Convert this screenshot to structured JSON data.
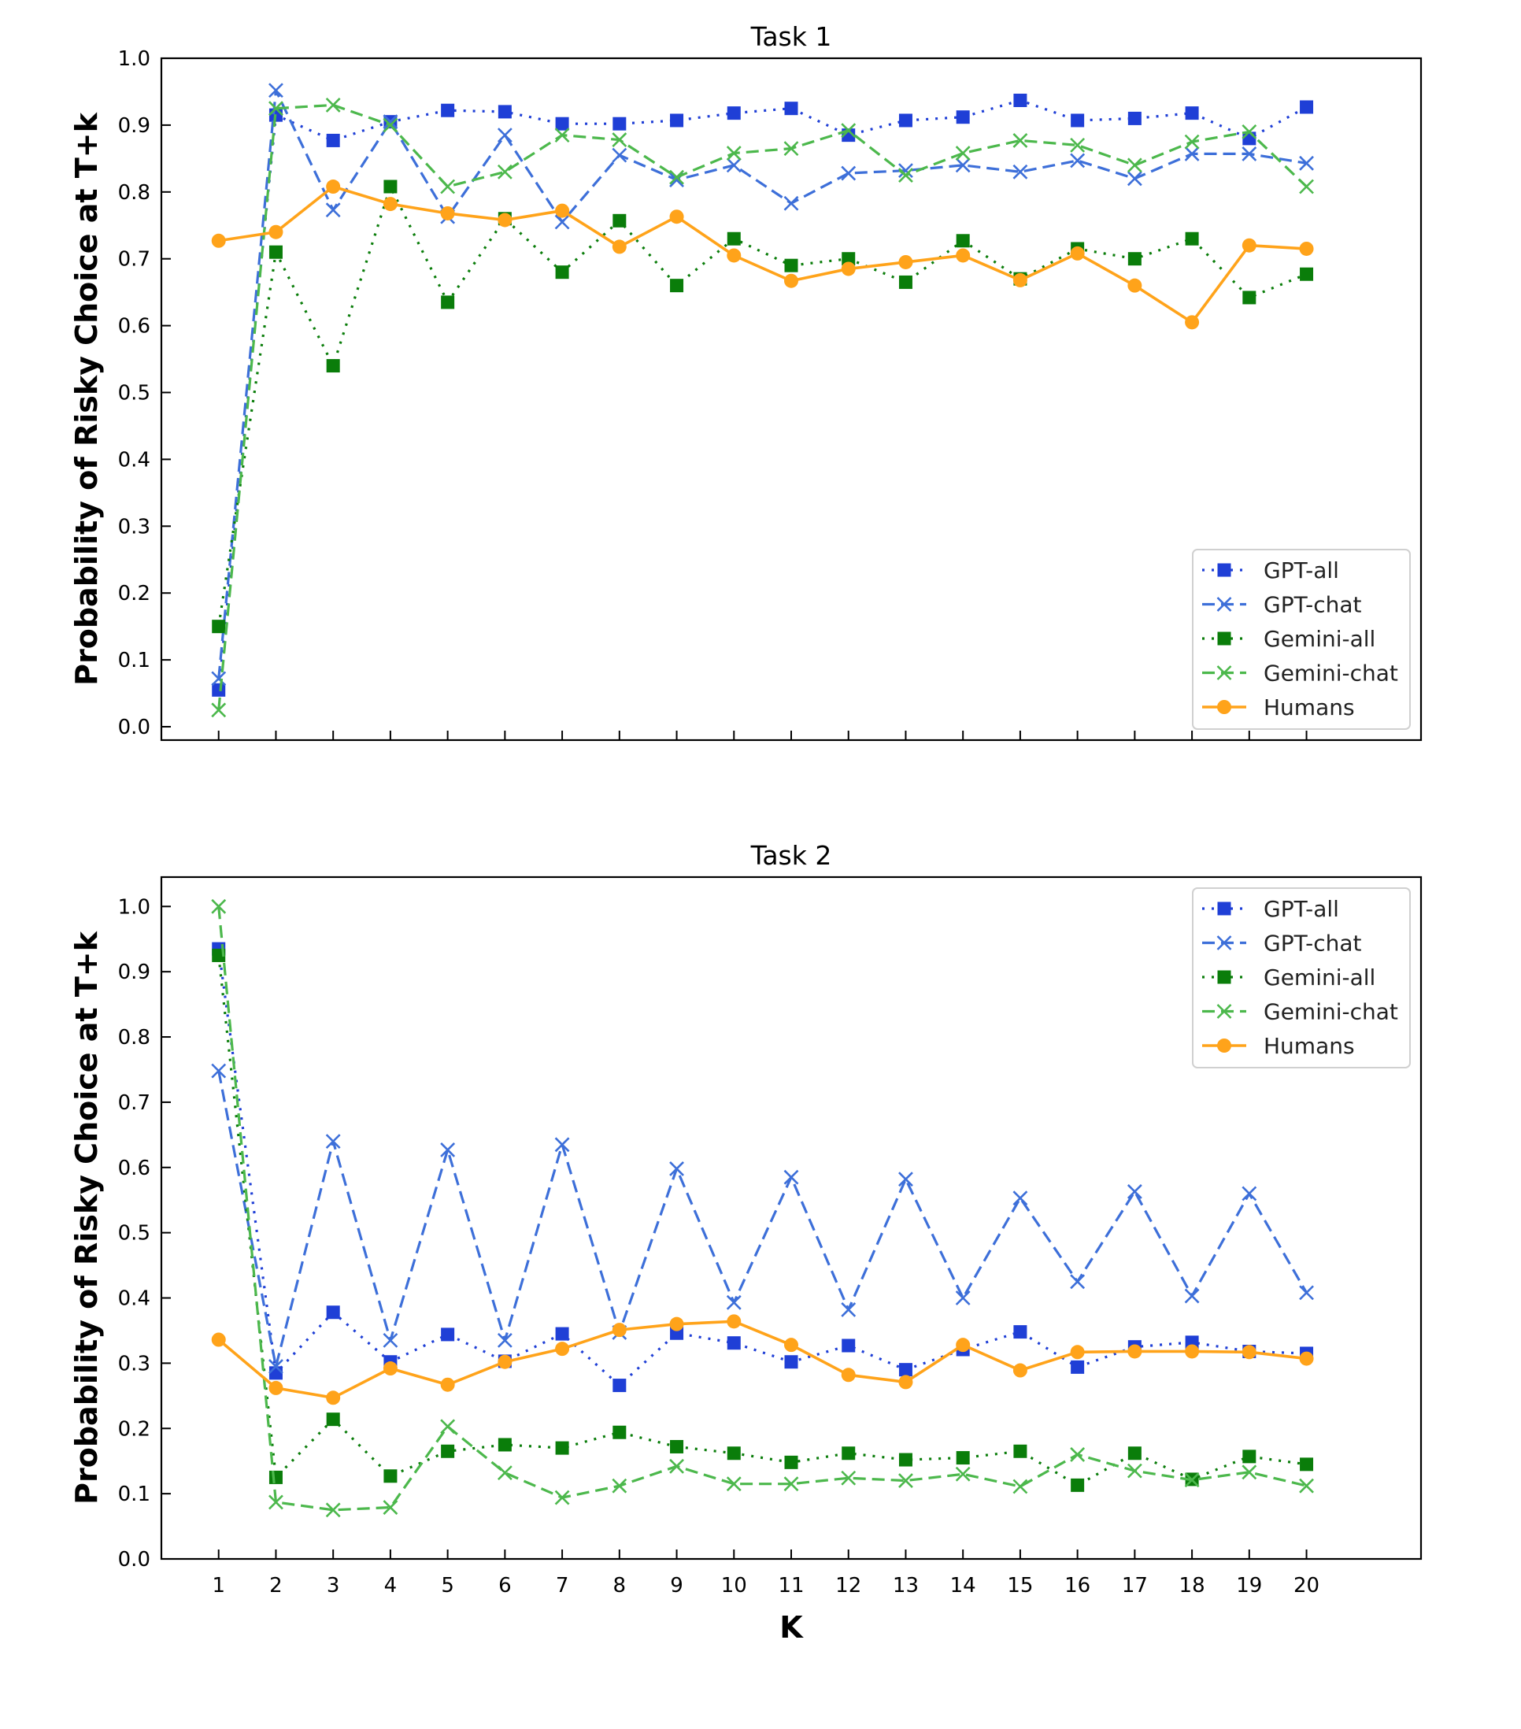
{
  "colors": {
    "gpt_all": "#1f3fd6",
    "gpt_chat": "#3d6fd9",
    "gemini_all": "#0a7d0a",
    "gemini_chat": "#4cb84c",
    "humans": "#ffa31a"
  },
  "chart_data": [
    {
      "type": "line",
      "title": "Task 1",
      "xlabel": "",
      "ylabel": "Probability of Risky Choice at T+k",
      "x": [
        1,
        2,
        3,
        4,
        5,
        6,
        7,
        8,
        9,
        10,
        11,
        12,
        13,
        14,
        15,
        16,
        17,
        18,
        19,
        20
      ],
      "ylim": [
        -0.02,
        1.0
      ],
      "yticks": [
        "0.0",
        "0.1",
        "0.2",
        "0.3",
        "0.4",
        "0.5",
        "0.6",
        "0.7",
        "0.8",
        "0.9",
        "1.0"
      ],
      "show_xtick_labels": false,
      "legend_position": "lower-right",
      "series": [
        {
          "name": "GPT-all",
          "values": [
            0.055,
            0.915,
            0.877,
            0.905,
            0.922,
            0.92,
            0.902,
            0.902,
            0.907,
            0.918,
            0.925,
            0.885,
            0.907,
            0.912,
            0.937,
            0.907,
            0.91,
            0.918,
            0.88,
            0.927
          ]
        },
        {
          "name": "GPT-chat",
          "values": [
            0.072,
            0.952,
            0.773,
            0.905,
            0.763,
            0.885,
            0.755,
            0.855,
            0.818,
            0.84,
            0.783,
            0.828,
            0.832,
            0.84,
            0.83,
            0.847,
            0.82,
            0.857,
            0.857,
            0.843
          ]
        },
        {
          "name": "Gemini-all",
          "values": [
            0.15,
            0.71,
            0.54,
            0.808,
            0.635,
            0.76,
            0.68,
            0.757,
            0.66,
            0.73,
            0.69,
            0.7,
            0.665,
            0.727,
            0.67,
            0.715,
            0.7,
            0.73,
            0.642,
            0.677
          ]
        },
        {
          "name": "Gemini-chat",
          "values": [
            0.025,
            0.925,
            0.93,
            0.9,
            0.808,
            0.83,
            0.885,
            0.878,
            0.822,
            0.858,
            0.865,
            0.892,
            0.825,
            0.858,
            0.877,
            0.87,
            0.84,
            0.875,
            0.89,
            0.808
          ]
        },
        {
          "name": "Humans",
          "values": [
            0.727,
            0.74,
            0.808,
            0.782,
            0.768,
            0.758,
            0.772,
            0.718,
            0.763,
            0.705,
            0.667,
            0.685,
            0.695,
            0.705,
            0.668,
            0.708,
            0.66,
            0.605,
            0.72,
            0.715
          ]
        }
      ]
    },
    {
      "type": "line",
      "title": "Task 2",
      "xlabel": "K",
      "ylabel": "Probability of Risky Choice at T+k",
      "x": [
        1,
        2,
        3,
        4,
        5,
        6,
        7,
        8,
        9,
        10,
        11,
        12,
        13,
        14,
        15,
        16,
        17,
        18,
        19,
        20
      ],
      "ylim": [
        0.0,
        1.045
      ],
      "yticks": [
        "0.0",
        "0.1",
        "0.2",
        "0.3",
        "0.4",
        "0.5",
        "0.6",
        "0.7",
        "0.8",
        "0.9",
        "1.0"
      ],
      "show_xtick_labels": true,
      "legend_position": "upper-right",
      "series": [
        {
          "name": "GPT-all",
          "values": [
            0.935,
            0.285,
            0.378,
            0.302,
            0.344,
            0.303,
            0.345,
            0.266,
            0.346,
            0.331,
            0.302,
            0.327,
            0.29,
            0.321,
            0.348,
            0.294,
            0.325,
            0.332,
            0.318,
            0.315
          ]
        },
        {
          "name": "GPT-chat",
          "values": [
            0.748,
            0.295,
            0.64,
            0.335,
            0.627,
            0.335,
            0.635,
            0.347,
            0.598,
            0.393,
            0.585,
            0.382,
            0.582,
            0.4,
            0.553,
            0.425,
            0.563,
            0.403,
            0.56,
            0.408
          ]
        },
        {
          "name": "Gemini-all",
          "values": [
            0.925,
            0.125,
            0.214,
            0.127,
            0.165,
            0.175,
            0.17,
            0.194,
            0.172,
            0.162,
            0.148,
            0.162,
            0.152,
            0.155,
            0.165,
            0.113,
            0.162,
            0.122,
            0.157,
            0.145
          ]
        },
        {
          "name": "Gemini-chat",
          "values": [
            1.0,
            0.087,
            0.075,
            0.079,
            0.203,
            0.132,
            0.094,
            0.112,
            0.142,
            0.115,
            0.115,
            0.124,
            0.12,
            0.13,
            0.111,
            0.16,
            0.135,
            0.121,
            0.133,
            0.112
          ]
        },
        {
          "name": "Humans",
          "values": [
            0.336,
            0.262,
            0.247,
            0.292,
            0.267,
            0.302,
            0.322,
            0.351,
            0.36,
            0.364,
            0.328,
            0.282,
            0.271,
            0.328,
            0.289,
            0.317,
            0.318,
            0.318,
            0.317,
            0.307
          ]
        }
      ]
    }
  ]
}
